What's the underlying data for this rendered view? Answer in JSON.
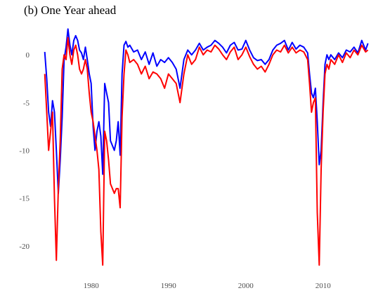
{
  "chart_data": {
    "type": "line",
    "title": "(b) One Year ahead",
    "xlabel": "",
    "ylabel": "",
    "xlim": [
      1973.3,
      2016.2
    ],
    "ylim": [
      -22.5,
      2.8
    ],
    "grid": false,
    "x_ticks": [
      1980,
      1990,
      2000,
      2010
    ],
    "x_tick_labels": [
      "1980",
      "1990",
      "2000",
      "2010"
    ],
    "y_ticks": [
      0,
      -5,
      -10,
      -15,
      -20
    ],
    "y_tick_labels": [
      "0",
      "-5",
      "-10",
      "-15",
      "-20"
    ],
    "series": [
      {
        "color": "#0000ff",
        "x": [
          1974.0,
          1974.25,
          1974.5,
          1974.75,
          1975.0,
          1975.25,
          1975.5,
          1975.75,
          1976.0,
          1976.25,
          1976.5,
          1976.75,
          1977.0,
          1977.25,
          1977.5,
          1977.75,
          1978.0,
          1978.25,
          1978.5,
          1978.75,
          1979.0,
          1979.25,
          1979.5,
          1979.75,
          1980.0,
          1980.25,
          1980.5,
          1980.75,
          1981.0,
          1981.25,
          1981.5,
          1981.75,
          1982.0,
          1982.25,
          1982.5,
          1982.75,
          1983.0,
          1983.25,
          1983.5,
          1983.75,
          1984.0,
          1984.25,
          1984.5,
          1984.75,
          1985.0,
          1985.5,
          1986.0,
          1986.5,
          1987.0,
          1987.5,
          1988.0,
          1988.5,
          1989.0,
          1989.5,
          1990.0,
          1990.5,
          1991.0,
          1991.5,
          1992.0,
          1992.5,
          1993.0,
          1993.5,
          1994.0,
          1994.5,
          1995.0,
          1995.5,
          1996.0,
          1996.5,
          1997.0,
          1997.5,
          1998.0,
          1998.5,
          1999.0,
          1999.5,
          2000.0,
          2000.5,
          2001.0,
          2001.5,
          2002.0,
          2002.5,
          2003.0,
          2003.5,
          2004.0,
          2004.5,
          2005.0,
          2005.5,
          2006.0,
          2006.5,
          2007.0,
          2007.5,
          2008.0,
          2008.25,
          2008.5,
          2008.75,
          2009.0,
          2009.25,
          2009.5,
          2009.75,
          2010.0,
          2010.25,
          2010.5,
          2010.75,
          2011.0,
          2011.5,
          2012.0,
          2012.5,
          2013.0,
          2013.5,
          2014.0,
          2014.5,
          2015.0,
          2015.5,
          2015.8
        ],
        "y": [
          0.3,
          -2.5,
          -6.0,
          -7.5,
          -4.8,
          -6.0,
          -10.0,
          -14.5,
          -11.0,
          -6.5,
          -0.5,
          0.8,
          2.7,
          1.0,
          0.0,
          1.5,
          2.0,
          1.5,
          0.5,
          0.2,
          -0.5,
          0.8,
          -0.5,
          -2.0,
          -3.0,
          -7.5,
          -10.0,
          -8.0,
          -7.0,
          -8.5,
          -12.5,
          -3.0,
          -4.0,
          -5.0,
          -9.0,
          -9.5,
          -10.0,
          -9.0,
          -7.0,
          -10.5,
          -2.0,
          1.0,
          1.4,
          0.8,
          1.0,
          0.3,
          0.5,
          -0.5,
          0.3,
          -1.0,
          0.2,
          -1.2,
          -0.5,
          -0.8,
          -0.3,
          -0.8,
          -1.5,
          -3.5,
          -0.5,
          0.5,
          0.0,
          0.5,
          1.2,
          0.5,
          0.8,
          1.0,
          1.5,
          1.2,
          0.8,
          0.2,
          1.0,
          1.3,
          0.5,
          0.6,
          1.5,
          0.5,
          -0.3,
          -0.6,
          -0.5,
          -1.0,
          -0.5,
          0.5,
          1.0,
          1.2,
          1.5,
          0.5,
          1.3,
          0.6,
          1.0,
          0.8,
          0.2,
          -2.0,
          -4.0,
          -4.5,
          -3.5,
          -7.0,
          -11.5,
          -10.0,
          -5.0,
          -1.0,
          0.0,
          -0.5,
          0.0,
          -0.5,
          0.2,
          -0.3,
          0.5,
          0.3,
          0.8,
          0.2,
          1.5,
          0.5,
          1.2
        ]
      },
      {
        "color": "#ff0000",
        "x": [
          1974.0,
          1974.25,
          1974.5,
          1974.75,
          1975.0,
          1975.25,
          1975.5,
          1975.75,
          1976.0,
          1976.25,
          1976.5,
          1976.75,
          1977.0,
          1977.25,
          1977.5,
          1977.75,
          1978.0,
          1978.25,
          1978.5,
          1978.75,
          1979.0,
          1979.25,
          1979.5,
          1979.75,
          1980.0,
          1980.25,
          1980.5,
          1980.75,
          1981.0,
          1981.25,
          1981.5,
          1981.75,
          1982.0,
          1982.25,
          1982.5,
          1982.75,
          1983.0,
          1983.25,
          1983.5,
          1983.75,
          1984.0,
          1984.25,
          1984.5,
          1984.75,
          1985.0,
          1985.5,
          1986.0,
          1986.5,
          1987.0,
          1987.5,
          1988.0,
          1988.5,
          1989.0,
          1989.5,
          1990.0,
          1990.5,
          1991.0,
          1991.5,
          1992.0,
          1992.5,
          1993.0,
          1993.5,
          1994.0,
          1994.5,
          1995.0,
          1995.5,
          1996.0,
          1996.5,
          1997.0,
          1997.5,
          1998.0,
          1998.5,
          1999.0,
          1999.5,
          2000.0,
          2000.5,
          2001.0,
          2001.5,
          2002.0,
          2002.5,
          2003.0,
          2003.5,
          2004.0,
          2004.5,
          2005.0,
          2005.5,
          2006.0,
          2006.5,
          2007.0,
          2007.5,
          2008.0,
          2008.25,
          2008.5,
          2008.75,
          2009.0,
          2009.25,
          2009.5,
          2009.75,
          2010.0,
          2010.25,
          2010.5,
          2010.75,
          2011.0,
          2011.5,
          2012.0,
          2012.5,
          2013.0,
          2013.5,
          2014.0,
          2014.5,
          2015.0,
          2015.5,
          2015.8
        ],
        "y": [
          -2.0,
          -6.0,
          -10.0,
          -8.0,
          -6.0,
          -15.0,
          -21.5,
          -14.0,
          -9.0,
          -1.5,
          0.0,
          -0.5,
          1.8,
          0.0,
          -1.0,
          0.5,
          1.0,
          0.0,
          -1.5,
          -2.0,
          -1.5,
          -0.5,
          -1.5,
          -4.0,
          -6.0,
          -7.0,
          -8.5,
          -10.0,
          -12.0,
          -18.5,
          -22.0,
          -8.0,
          -9.0,
          -11.0,
          -13.5,
          -14.0,
          -14.5,
          -14.0,
          -14.0,
          -16.0,
          -6.5,
          -2.0,
          0.5,
          0.0,
          -0.8,
          -0.5,
          -1.0,
          -2.0,
          -1.2,
          -2.5,
          -1.8,
          -2.0,
          -2.5,
          -3.5,
          -2.0,
          -2.5,
          -3.0,
          -5.0,
          -2.0,
          0.0,
          -1.0,
          -0.5,
          0.8,
          0.0,
          0.5,
          0.3,
          1.0,
          0.6,
          0.0,
          -0.5,
          0.3,
          0.8,
          -0.5,
          0.0,
          0.8,
          -0.2,
          -1.0,
          -1.5,
          -1.2,
          -1.8,
          -1.0,
          0.0,
          0.5,
          0.3,
          1.0,
          0.2,
          0.8,
          0.2,
          0.5,
          0.3,
          -0.5,
          -3.0,
          -6.0,
          -5.0,
          -4.5,
          -16.5,
          -22.0,
          -12.0,
          -6.0,
          -2.0,
          -1.0,
          -1.5,
          -0.5,
          -1.0,
          0.0,
          -0.8,
          0.2,
          -0.3,
          0.5,
          0.0,
          1.0,
          0.3,
          0.5
        ]
      }
    ]
  }
}
